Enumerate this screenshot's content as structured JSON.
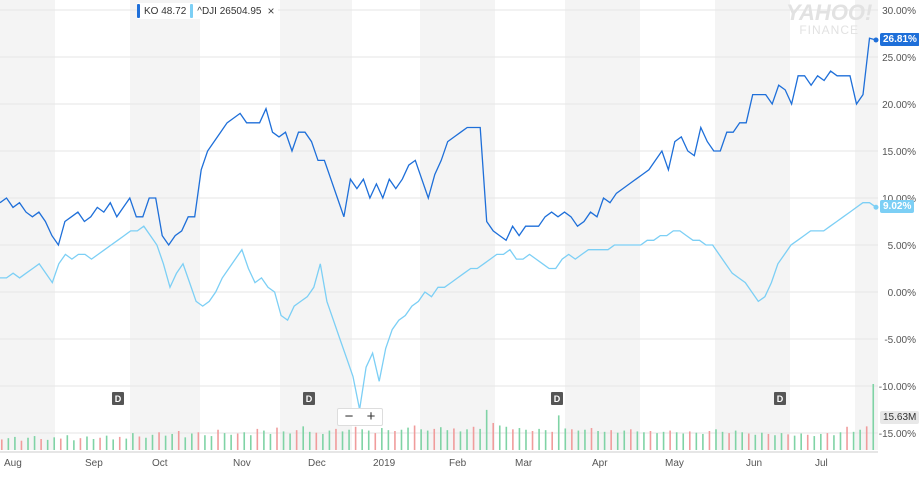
{
  "legend": {
    "items": [
      {
        "symbol": "KO",
        "value": "48.72",
        "color": "#1e6fd9"
      },
      {
        "symbol": "^DJI",
        "value": "26504.95",
        "color": "#7ccff5"
      }
    ],
    "close": "×"
  },
  "watermark": {
    "line1": "YAHOO!",
    "line2": "FINANCE"
  },
  "tags": {
    "ko": "26.81%",
    "dji": "9.02%",
    "volume": "15.63M"
  },
  "zoom": {
    "minus": "−",
    "plus": "+"
  },
  "chart_data": {
    "type": "line",
    "y_unit": "%",
    "ylim": [
      -15,
      30
    ],
    "y_ticks": [
      "30.00%",
      "25.00%",
      "20.00%",
      "15.00%",
      "10.00%",
      "5.00%",
      "0.00%",
      "-5.00%",
      "-10.00%",
      "-15.00%"
    ],
    "x_labels": [
      "Aug",
      "Sep",
      "Oct",
      "Nov",
      "Dec",
      "2019",
      "Feb",
      "Mar",
      "Apr",
      "May",
      "Jun",
      "Jul"
    ],
    "dividend_markers": [
      "D",
      "D",
      "D",
      "D"
    ],
    "series": [
      {
        "name": "KO",
        "color": "#1e6fd9",
        "values": [
          9.5,
          10,
          9,
          9.5,
          8.5,
          8,
          8.5,
          7.5,
          6,
          5,
          7.5,
          8,
          8.5,
          7.5,
          8,
          9,
          8.5,
          9.5,
          8,
          9,
          10,
          8,
          8,
          10,
          10,
          6,
          5,
          6,
          6.5,
          8,
          8,
          13,
          15,
          16,
          17,
          18,
          18.5,
          19,
          18,
          18,
          18,
          19.5,
          17,
          16.5,
          17,
          15,
          17,
          17,
          16,
          14,
          14,
          12,
          10,
          8,
          12,
          11,
          12,
          10,
          11.5,
          10,
          12,
          11,
          12,
          13.5,
          14,
          12,
          10,
          12.5,
          14,
          16,
          16.5,
          17,
          17.5,
          17.5,
          17.5,
          7.5,
          6.5,
          6,
          5.5,
          7,
          6,
          7,
          7,
          7,
          8,
          8.5,
          8,
          8.5,
          8,
          7,
          7.5,
          8.5,
          8,
          10,
          9.5,
          10.5,
          11,
          11.5,
          12,
          12.5,
          13,
          14,
          15,
          13,
          16,
          16.5,
          15,
          14.5,
          17.5,
          16,
          15,
          15,
          17,
          17,
          18,
          18,
          21,
          21,
          21,
          20,
          22,
          21.5,
          20,
          23,
          23,
          22,
          23,
          22.5,
          23.5,
          23,
          23,
          23,
          20,
          21,
          27,
          26.81
        ]
      },
      {
        "name": "^DJI",
        "color": "#7ccff5",
        "values": [
          1.5,
          1.5,
          2,
          1.5,
          2,
          2.5,
          3,
          2,
          1,
          3,
          4,
          3.5,
          4,
          4,
          3.5,
          4,
          4.5,
          5,
          5.5,
          6,
          6.5,
          6.5,
          7,
          6,
          5,
          3,
          0.5,
          2,
          3,
          1,
          -1,
          -1.5,
          -1,
          0,
          1.5,
          2.5,
          3.5,
          4.5,
          2.5,
          1,
          1.5,
          0.5,
          0,
          -2.5,
          -3,
          -1.5,
          -1,
          -0.5,
          0.5,
          3,
          -1,
          -3,
          -5,
          -7,
          -9,
          -12.5,
          -8,
          -6.5,
          -9.5,
          -6,
          -4,
          -3,
          -2.5,
          -1.5,
          -1,
          0,
          -0.5,
          0.5,
          0.5,
          1,
          1.5,
          2,
          2.5,
          2.5,
          3,
          3.5,
          4,
          4,
          4.5,
          3.5,
          3.5,
          4,
          3.5,
          3,
          2.5,
          2.5,
          3.5,
          4,
          3.5,
          4,
          4.5,
          4.5,
          4.5,
          4.5,
          5,
          5,
          5,
          5,
          5,
          5.5,
          5.5,
          6,
          6,
          6.5,
          6.5,
          6,
          5.5,
          5.5,
          5,
          5,
          4,
          3,
          2,
          1.5,
          1,
          0,
          -1,
          -0.5,
          1,
          3,
          4,
          5,
          5.5,
          6,
          6.5,
          6.5,
          6.5,
          7,
          7.5,
          8,
          8.5,
          9,
          9.5,
          9.5,
          9.02
        ]
      }
    ],
    "volume": {
      "scale_max": 15.63,
      "bars": [
        2.5,
        2.8,
        3.1,
        2.2,
        2.9,
        3.3,
        2.6,
        2.4,
        3.0,
        2.7,
        3.5,
        2.3,
        2.8,
        3.2,
        2.6,
        2.9,
        3.4,
        2.5,
        3.1,
        2.7,
        4.0,
        3.2,
        2.9,
        3.6,
        4.2,
        3.4,
        3.8,
        4.5,
        3.0,
        3.9,
        4.2,
        3.5,
        3.3,
        4.8,
        4.0,
        3.6,
        3.9,
        4.2,
        3.5,
        5.0,
        4.6,
        3.8,
        5.3,
        4.4,
        3.9,
        4.7,
        5.6,
        4.3,
        4.1,
        3.8,
        4.6,
        5.0,
        4.4,
        4.8,
        5.5,
        4.9,
        4.6,
        4.0,
        5.2,
        4.7,
        4.5,
        4.8,
        5.3,
        5.8,
        4.9,
        4.6,
        5.0,
        5.4,
        4.7,
        5.1,
        4.4,
        4.9,
        5.5,
        5.0,
        9.5,
        6.4,
        5.8,
        5.5,
        4.9,
        5.2,
        4.8,
        4.5,
        5.0,
        4.7,
        4.3,
        8.2,
        5.1,
        4.9,
        4.6,
        4.8,
        5.2,
        4.5,
        4.3,
        4.7,
        4.1,
        4.6,
        4.9,
        4.4,
        4.2,
        4.5,
        4.0,
        4.3,
        4.6,
        4.2,
        3.9,
        4.4,
        4.1,
        3.8,
        4.5,
        4.9,
        4.3,
        4.0,
        4.6,
        4.2,
        3.9,
        3.6,
        4.1,
        3.8,
        3.5,
        4.0,
        3.7,
        3.4,
        3.9,
        3.6,
        3.3,
        3.8,
        4.0,
        3.5,
        4.2,
        5.5,
        4.3,
        4.8,
        5.6,
        15.63
      ]
    }
  }
}
